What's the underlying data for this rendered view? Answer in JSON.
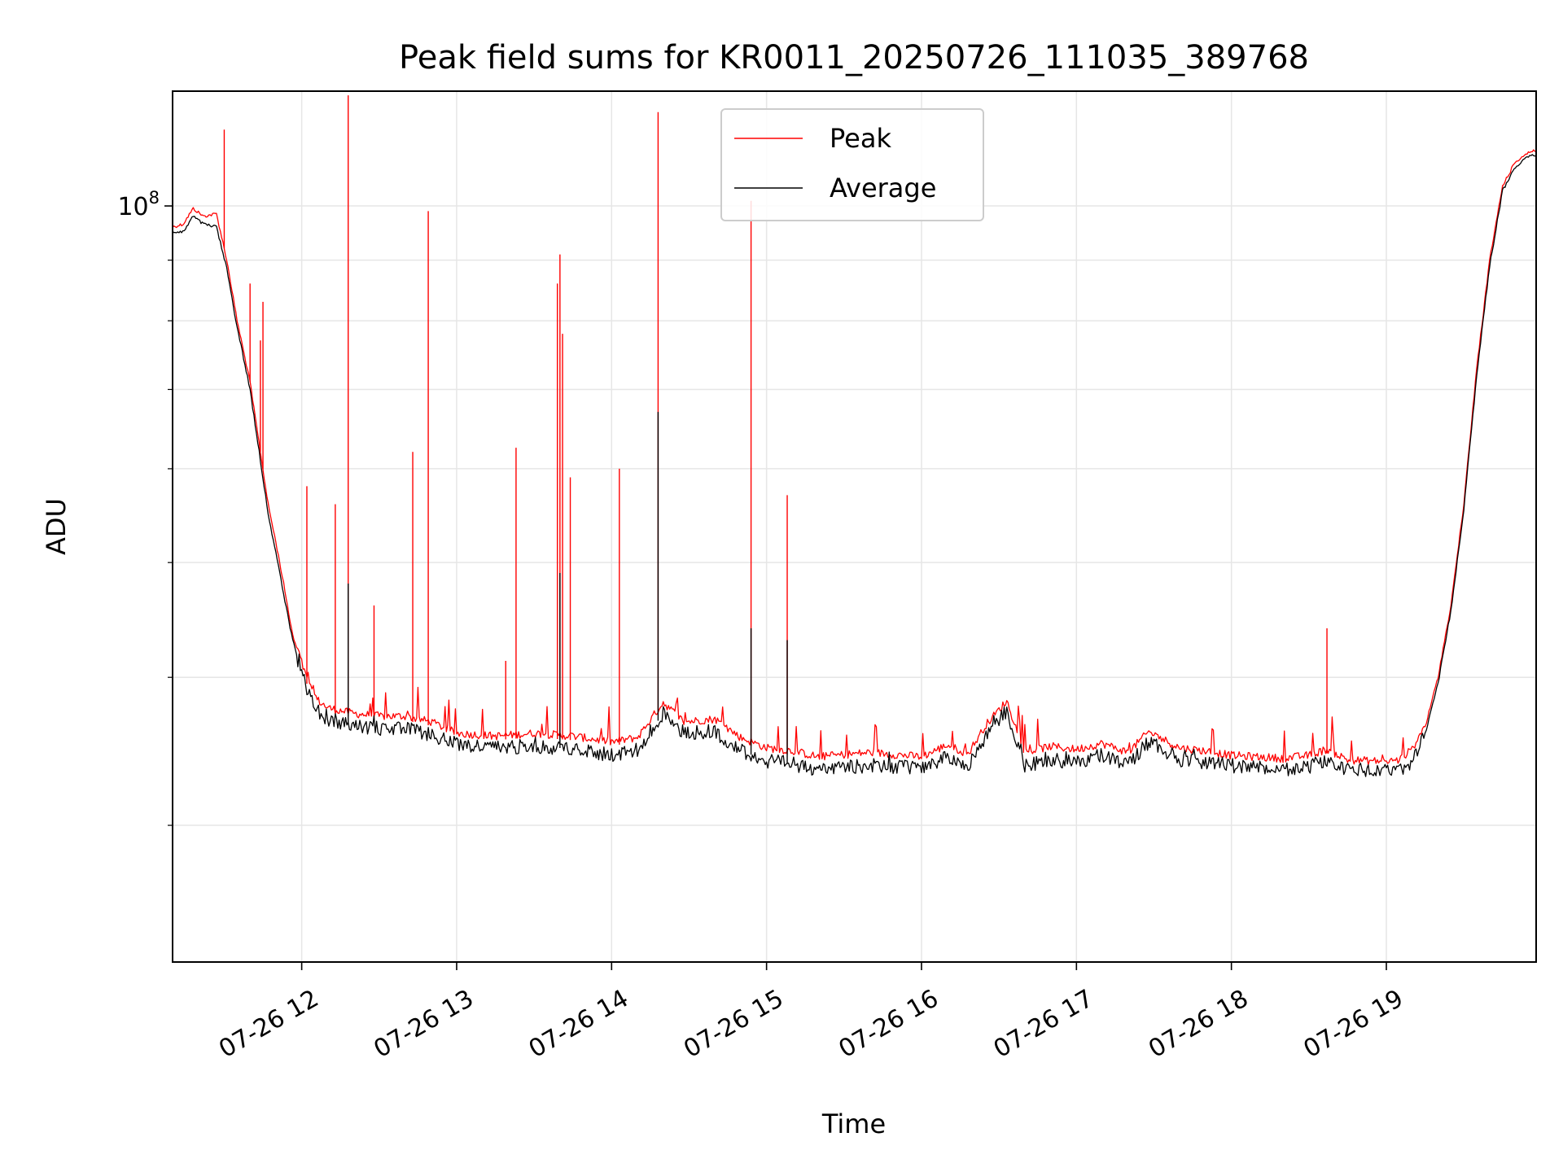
{
  "chart_data": {
    "type": "line",
    "title": "Peak field sums for KR0011_20250726_111035_389768",
    "xlabel": "Time",
    "ylabel": "ADU",
    "y_scale": "log",
    "grid": true,
    "legend_position": "top-center",
    "xlim": [
      "2025-07-26T11:10",
      "2025-07-26T19:58"
    ],
    "ylim": [
      23000000,
      125000000
    ],
    "x_ticks": [
      {
        "t": "2025-07-26T12:00",
        "label": "07-26 12"
      },
      {
        "t": "2025-07-26T13:00",
        "label": "07-26 13"
      },
      {
        "t": "2025-07-26T14:00",
        "label": "07-26 14"
      },
      {
        "t": "2025-07-26T15:00",
        "label": "07-26 15"
      },
      {
        "t": "2025-07-26T16:00",
        "label": "07-26 16"
      },
      {
        "t": "2025-07-26T17:00",
        "label": "07-26 17"
      },
      {
        "t": "2025-07-26T18:00",
        "label": "07-26 18"
      },
      {
        "t": "2025-07-26T19:00",
        "label": "07-26 19"
      }
    ],
    "y_ticks": [
      {
        "value": 100000000,
        "base": "10",
        "exp": "8"
      }
    ],
    "y_minor_ticks": [
      30000000,
      40000000,
      50000000,
      60000000,
      70000000,
      80000000,
      90000000
    ],
    "series": [
      {
        "name": "Peak",
        "color": "#ff0000",
        "points": [
          [
            "11:10",
            96000000
          ],
          [
            "11:14",
            96500000
          ],
          [
            "11:18",
            99500000
          ],
          [
            "11:22",
            98000000
          ],
          [
            "11:27",
            98500000
          ],
          [
            "11:31",
            90000000
          ],
          [
            "11:35",
            80000000
          ],
          [
            "11:40",
            71000000
          ],
          [
            "11:44",
            62000000
          ],
          [
            "11:47",
            56000000
          ],
          [
            "11:50",
            52000000
          ],
          [
            "11:53",
            48000000
          ],
          [
            "11:56",
            44000000
          ],
          [
            "11:59",
            41500000
          ],
          [
            "12:02",
            39500000
          ],
          [
            "12:06",
            38000000
          ],
          [
            "12:10",
            37400000
          ],
          [
            "12:20",
            37000000
          ],
          [
            "12:30",
            36800000
          ],
          [
            "12:40",
            36800000
          ],
          [
            "12:50",
            36400000
          ],
          [
            "13:00",
            35600000
          ],
          [
            "13:15",
            35400000
          ],
          [
            "13:30",
            35600000
          ],
          [
            "13:45",
            35400000
          ],
          [
            "14:00",
            35000000
          ],
          [
            "14:10",
            35300000
          ],
          [
            "14:20",
            37800000
          ],
          [
            "14:28",
            36400000
          ],
          [
            "14:40",
            36600000
          ],
          [
            "14:50",
            35300000
          ],
          [
            "15:00",
            34600000
          ],
          [
            "15:10",
            34400000
          ],
          [
            "15:20",
            34000000
          ],
          [
            "15:40",
            34300000
          ],
          [
            "16:00",
            34000000
          ],
          [
            "16:10",
            34800000
          ],
          [
            "16:18",
            34200000
          ],
          [
            "16:25",
            36200000
          ],
          [
            "16:33",
            37900000
          ],
          [
            "16:40",
            34300000
          ],
          [
            "16:50",
            34700000
          ],
          [
            "17:00",
            34500000
          ],
          [
            "17:10",
            34900000
          ],
          [
            "17:20",
            34300000
          ],
          [
            "17:28",
            35700000
          ],
          [
            "17:40",
            34600000
          ],
          [
            "17:50",
            34400000
          ],
          [
            "18:00",
            34100000
          ],
          [
            "18:20",
            33900000
          ],
          [
            "18:30",
            34100000
          ],
          [
            "18:37",
            34500000
          ],
          [
            "18:45",
            33800000
          ],
          [
            "19:00",
            33700000
          ],
          [
            "19:05",
            33800000
          ],
          [
            "19:10",
            34500000
          ],
          [
            "19:15",
            36300000
          ],
          [
            "19:20",
            40000000
          ],
          [
            "19:25",
            46000000
          ],
          [
            "19:30",
            56000000
          ],
          [
            "19:35",
            73000000
          ],
          [
            "19:40",
            90000000
          ],
          [
            "19:45",
            104000000
          ],
          [
            "19:50",
            109000000
          ],
          [
            "19:55",
            111000000
          ],
          [
            "19:58",
            111500000
          ]
        ],
        "spikes": [
          [
            "11:30",
            116000000
          ],
          [
            "11:40",
            86000000
          ],
          [
            "11:44",
            77000000
          ],
          [
            "11:45",
            83000000
          ],
          [
            "12:02",
            58000000
          ],
          [
            "12:13",
            56000000
          ],
          [
            "12:18",
            124000000
          ],
          [
            "12:28",
            46000000
          ],
          [
            "12:43",
            62000000
          ],
          [
            "12:49",
            99000000
          ],
          [
            "13:19",
            41300000
          ],
          [
            "13:23",
            62500000
          ],
          [
            "13:39",
            86000000
          ],
          [
            "13:40",
            91000000
          ],
          [
            "13:41",
            78000000
          ],
          [
            "13:44",
            59000000
          ],
          [
            "14:03",
            60000000
          ],
          [
            "14:18",
            120000000
          ],
          [
            "14:54",
            101000000
          ],
          [
            "15:08",
            57000000
          ],
          [
            "18:37",
            44000000
          ]
        ]
      },
      {
        "name": "Average",
        "color": "#000000",
        "points": [
          [
            "11:10",
            95000000
          ],
          [
            "11:14",
            95000000
          ],
          [
            "11:18",
            98000000
          ],
          [
            "11:22",
            96500000
          ],
          [
            "11:27",
            96000000
          ],
          [
            "11:31",
            88500000
          ],
          [
            "11:35",
            79000000
          ],
          [
            "11:40",
            70000000
          ],
          [
            "11:44",
            61000000
          ],
          [
            "11:47",
            55000000
          ],
          [
            "11:50",
            51000000
          ],
          [
            "11:53",
            47000000
          ],
          [
            "11:56",
            43500000
          ],
          [
            "11:59",
            41000000
          ],
          [
            "12:02",
            39000000
          ],
          [
            "12:06",
            37500000
          ],
          [
            "12:10",
            36900000
          ],
          [
            "12:20",
            36400000
          ],
          [
            "12:30",
            36200000
          ],
          [
            "12:40",
            36200000
          ],
          [
            "12:50",
            35800000
          ],
          [
            "13:00",
            35100000
          ],
          [
            "13:15",
            34900000
          ],
          [
            "13:30",
            35000000
          ],
          [
            "13:45",
            34800000
          ],
          [
            "14:00",
            34400000
          ],
          [
            "14:10",
            34700000
          ],
          [
            "14:20",
            37300000
          ],
          [
            "14:28",
            35900000
          ],
          [
            "14:40",
            36000000
          ],
          [
            "14:50",
            34700000
          ],
          [
            "15:00",
            34000000
          ],
          [
            "15:10",
            33800000
          ],
          [
            "15:20",
            33400000
          ],
          [
            "15:40",
            33700000
          ],
          [
            "16:00",
            33500000
          ],
          [
            "16:10",
            34300000
          ],
          [
            "16:18",
            33700000
          ],
          [
            "16:25",
            35700000
          ],
          [
            "16:33",
            37500000
          ],
          [
            "16:40",
            33700000
          ],
          [
            "16:50",
            34100000
          ],
          [
            "17:00",
            33900000
          ],
          [
            "17:10",
            34400000
          ],
          [
            "17:20",
            33800000
          ],
          [
            "17:28",
            35300000
          ],
          [
            "17:40",
            34100000
          ],
          [
            "17:50",
            33900000
          ],
          [
            "18:00",
            33700000
          ],
          [
            "18:20",
            33400000
          ],
          [
            "18:30",
            33600000
          ],
          [
            "18:37",
            34100000
          ],
          [
            "18:45",
            33400000
          ],
          [
            "19:00",
            33300000
          ],
          [
            "19:05",
            33300000
          ],
          [
            "19:10",
            34000000
          ],
          [
            "19:15",
            35800000
          ],
          [
            "19:20",
            39500000
          ],
          [
            "19:25",
            45500000
          ],
          [
            "19:30",
            55500000
          ],
          [
            "19:35",
            72000000
          ],
          [
            "19:40",
            89000000
          ],
          [
            "19:45",
            103000000
          ],
          [
            "19:50",
            108000000
          ],
          [
            "19:55",
            110000000
          ],
          [
            "19:58",
            110500000
          ]
        ],
        "spikes": [
          [
            "12:18",
            48000000
          ],
          [
            "13:40",
            49000000
          ],
          [
            "14:18",
            67000000
          ],
          [
            "14:54",
            44000000
          ],
          [
            "15:08",
            43000000
          ]
        ]
      }
    ]
  }
}
